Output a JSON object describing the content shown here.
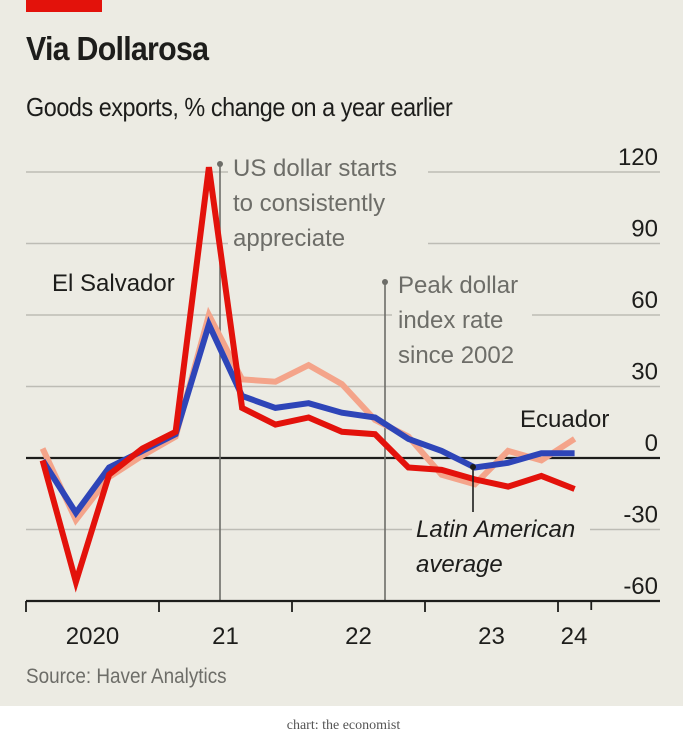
{
  "header": {
    "title": "Via Dollarosa",
    "subtitle": "Goods exports, % change on a year earlier"
  },
  "footer": {
    "source": "Source: Haver Analytics",
    "credit": "chart: the economist"
  },
  "colors": {
    "el_salvador": "#e3120b",
    "latam_average": "#2e45b8",
    "ecuador": "#f4a48a",
    "brand_bar": "#e3120b",
    "background": "#ecebe3"
  },
  "chart_data": {
    "type": "line",
    "title": "Via Dollarosa",
    "subtitle": "Goods exports, % change on a year earlier",
    "xlabel": "",
    "ylabel": "",
    "x": [
      "2020 Q1",
      "2020 Q2",
      "2020 Q3",
      "2020 Q4",
      "2021 Q1",
      "2021 Q2",
      "2021 Q3",
      "2021 Q4",
      "2022 Q1",
      "2022 Q2",
      "2022 Q3",
      "2022 Q4",
      "2023 Q1",
      "2023 Q2",
      "2023 Q3",
      "2023 Q4",
      "2024 Q1"
    ],
    "x_tick_labels": [
      {
        "label": "2020",
        "year": 2020
      },
      {
        "label": "21",
        "year": 2021
      },
      {
        "label": "22",
        "year": 2022
      },
      {
        "label": "23",
        "year": 2023
      },
      {
        "label": "24",
        "year": 2024
      }
    ],
    "yticks": [
      120,
      90,
      60,
      30,
      0,
      -30,
      -60
    ],
    "ylim": [
      -60,
      120
    ],
    "grid": true,
    "series": [
      {
        "name": "Ecuador",
        "color": "#f4a48a",
        "values": [
          4,
          -26,
          -8,
          1,
          9,
          60,
          33,
          32,
          39,
          31,
          16,
          9,
          -7,
          -11,
          3,
          -1,
          8
        ]
      },
      {
        "name": "Latin American average",
        "color": "#2e45b8",
        "values": [
          -1,
          -23,
          -4,
          3,
          10,
          56,
          26,
          21,
          23,
          19,
          17,
          8,
          3,
          -4,
          -2,
          2,
          2
        ]
      },
      {
        "name": "El Salvador",
        "color": "#e3120b",
        "values": [
          -1,
          -52,
          -7,
          4,
          11,
          122,
          21,
          14,
          17,
          11,
          10,
          -4,
          -5,
          -9,
          -12,
          -7.5,
          -13
        ]
      }
    ],
    "series_labels": {
      "el_salvador": "El Salvador",
      "ecuador": "Ecuador",
      "latam_line1": "Latin American",
      "latam_line2": "average"
    },
    "annotations": [
      {
        "lines": [
          "US dollar starts",
          "to consistently",
          "appreciate"
        ],
        "at": "2021 Q2/Q3 boundary"
      },
      {
        "lines": [
          "Peak dollar",
          "index rate",
          "since 2002"
        ],
        "at": "2022 Q3"
      }
    ]
  }
}
